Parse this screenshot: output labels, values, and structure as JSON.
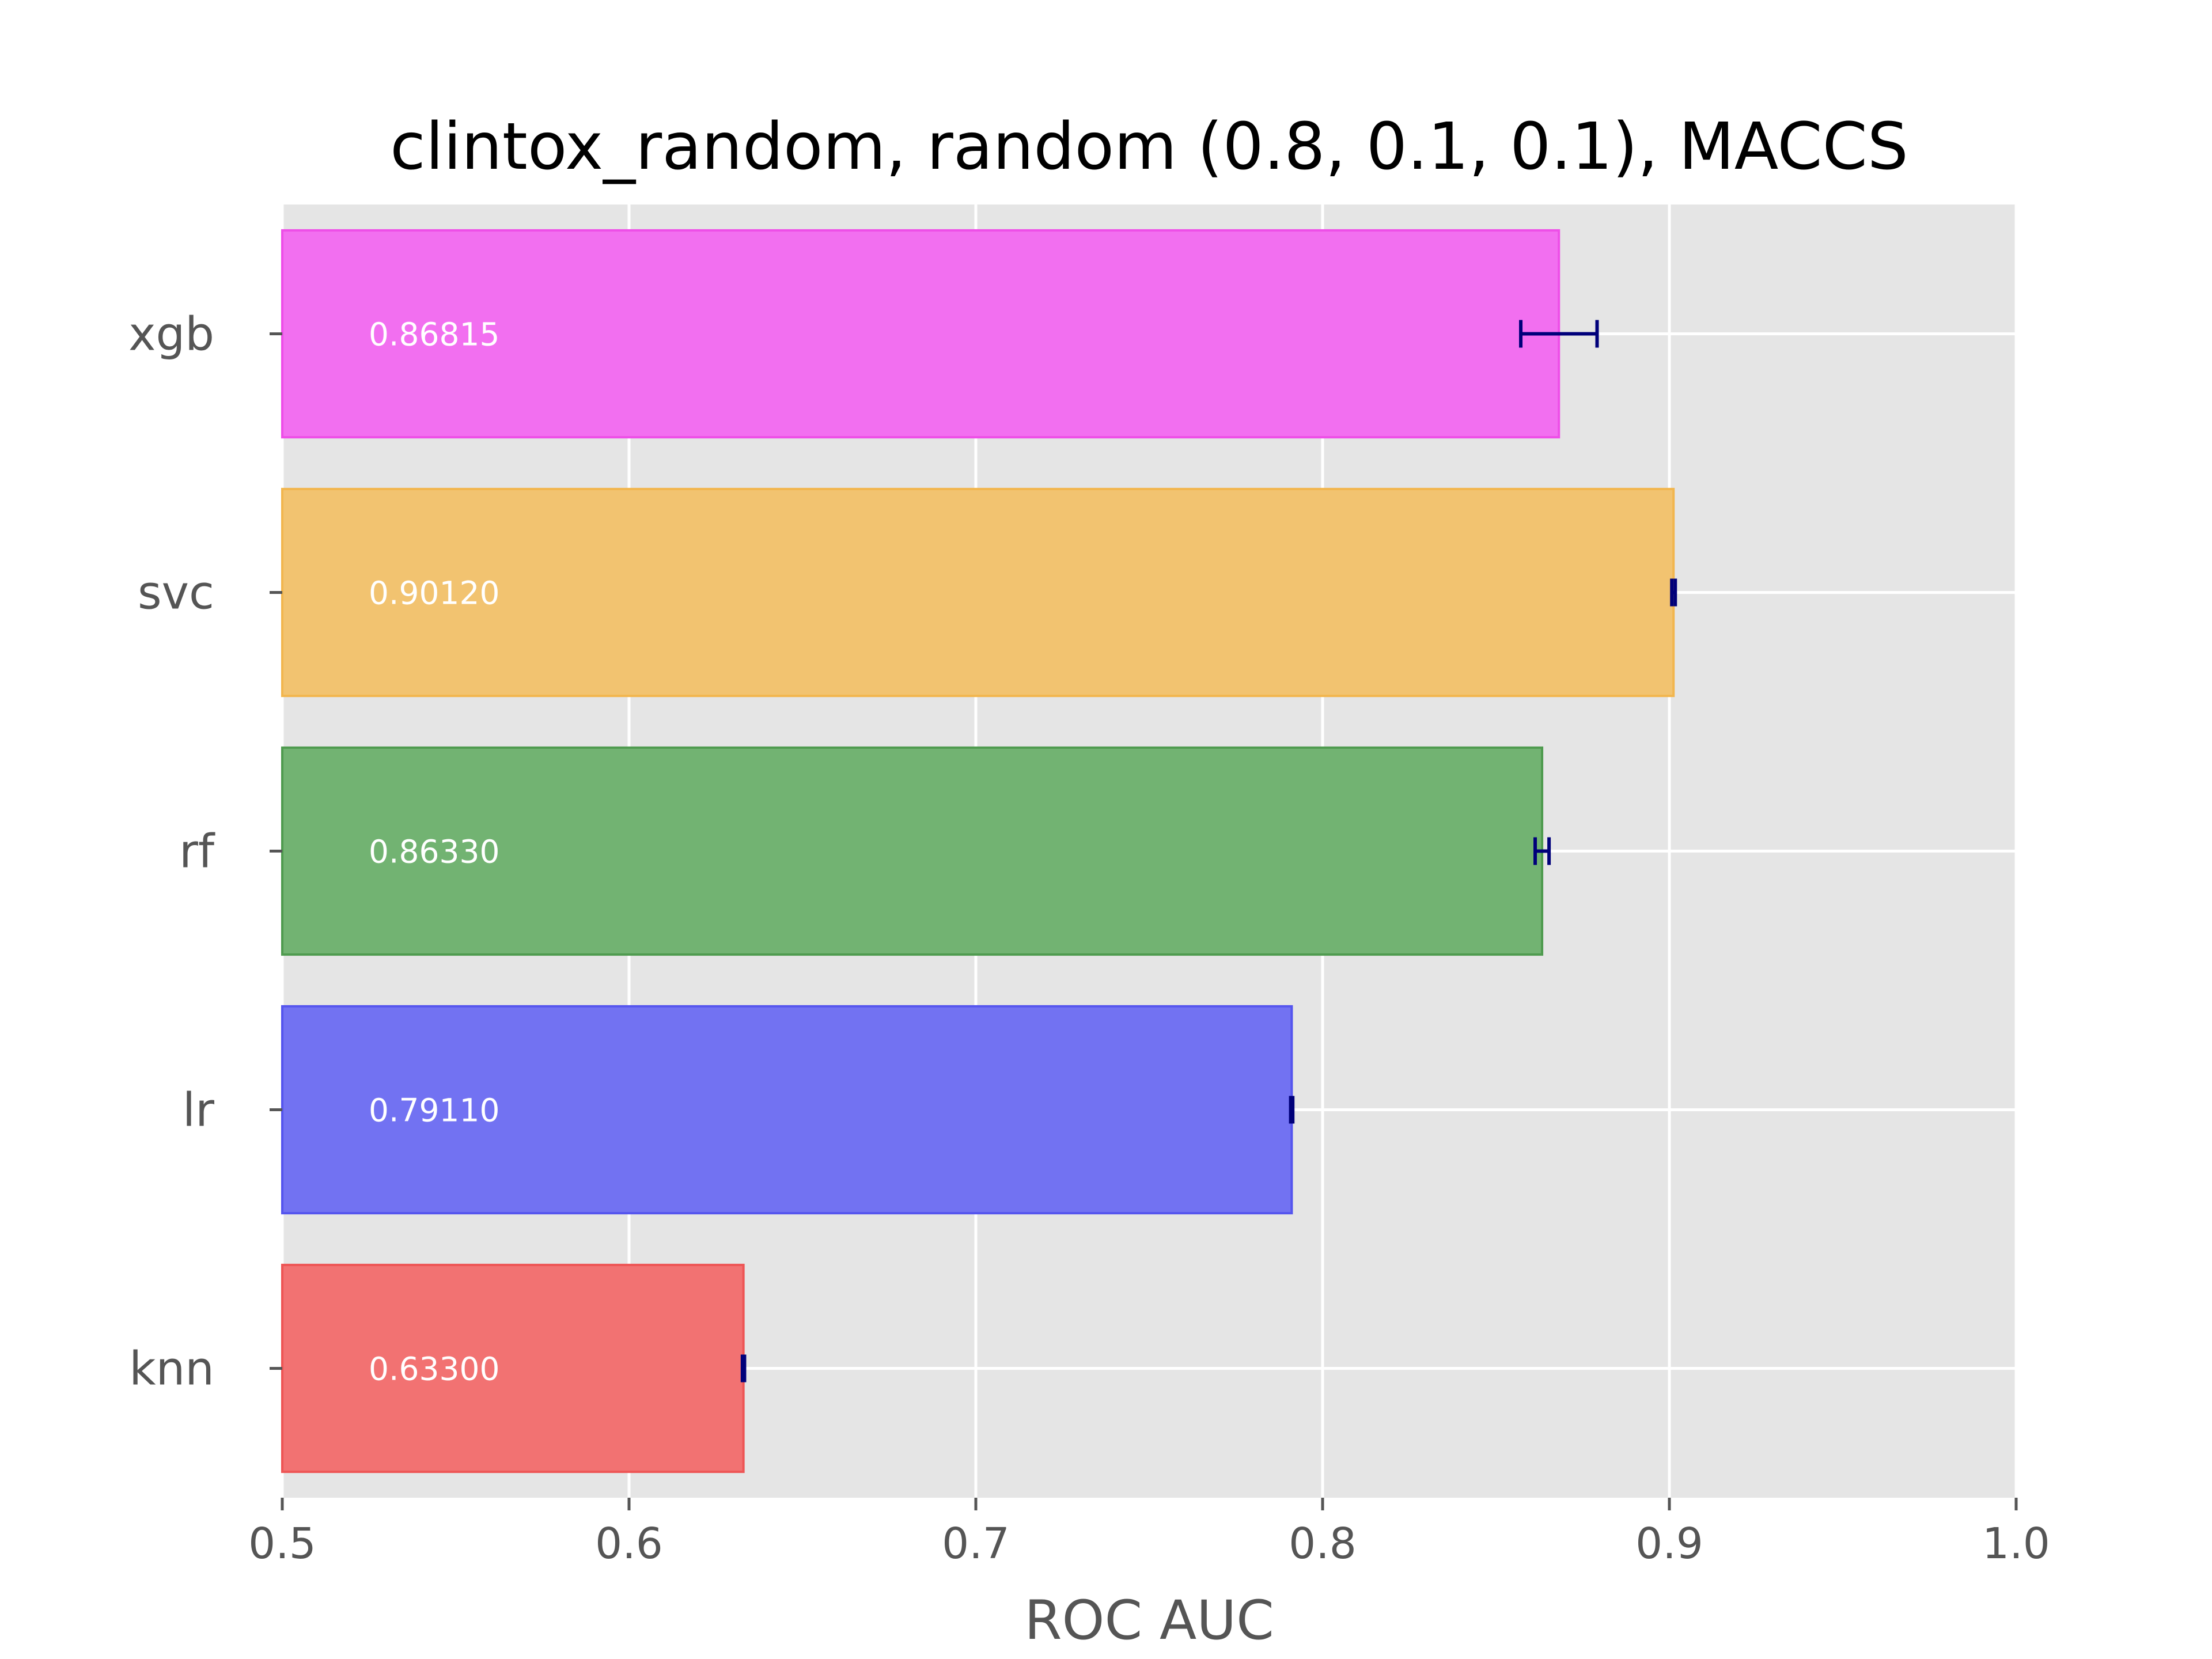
{
  "chart_data": {
    "type": "bar",
    "orientation": "horizontal",
    "title": "clintox_random, random (0.8, 0.1, 0.1), MACCS",
    "xlabel": "ROC AUC",
    "ylabel": "",
    "xlim": [
      0.5,
      1.0
    ],
    "xticks": [
      "0.5",
      "0.6",
      "0.7",
      "0.8",
      "0.9",
      "1.0"
    ],
    "grid": true,
    "legend": "none",
    "categories": [
      "xgb",
      "svc",
      "rf",
      "lr",
      "knn"
    ],
    "values": [
      0.86815,
      0.9012,
      0.8633,
      0.7911,
      0.633
    ],
    "value_labels": [
      "0.86815",
      "0.90120",
      "0.86330",
      "0.79110",
      "0.63300"
    ],
    "errors": [
      0.011,
      0.0005,
      0.002,
      0.0003,
      0.0003
    ],
    "colors": [
      "#f26ff0",
      "#f2c370",
      "#72b372",
      "#7272f2",
      "#f27272"
    ],
    "edge_colors": [
      "#ee4ee8",
      "#f2b64e",
      "#4f9b4f",
      "#5555ee",
      "#ee5555"
    ],
    "error_color": "#00007a",
    "background": "#e5e5e5"
  }
}
